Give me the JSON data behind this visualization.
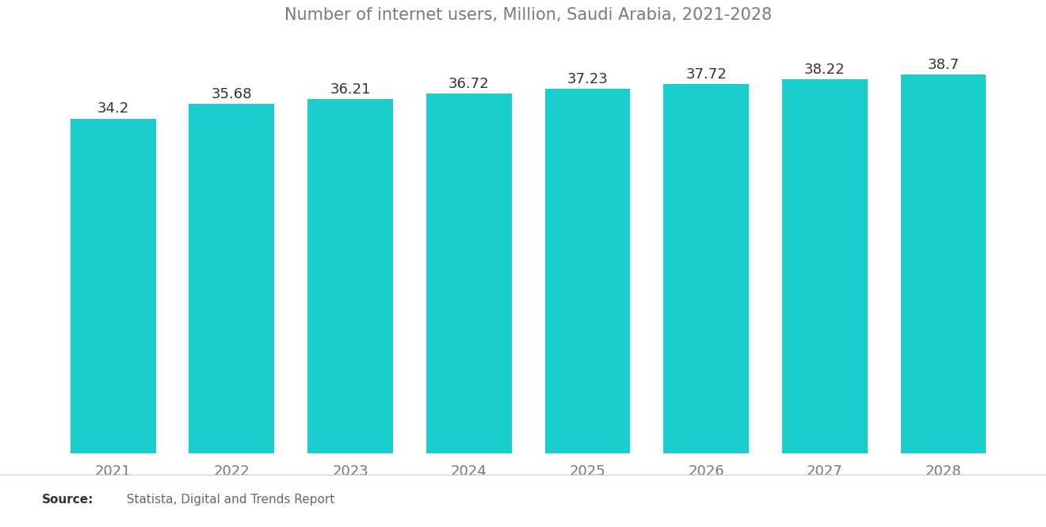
{
  "title": "Number of internet users, Million, Saudi Arabia, 2021-2028",
  "years": [
    "2021",
    "2022",
    "2023",
    "2024",
    "2025",
    "2026",
    "2027",
    "2028"
  ],
  "values": [
    34.2,
    35.68,
    36.21,
    36.72,
    37.23,
    37.72,
    38.22,
    38.7
  ],
  "bar_color": "#1ACECB",
  "background_color": "#ffffff",
  "title_color": "#7a7a7a",
  "label_color": "#333333",
  "tick_color": "#777777",
  "source_bold": "Source:",
  "source_rest": "  Statista, Digital and Trends Report",
  "ylim_min": 0,
  "ylim_max": 42,
  "bar_width": 0.72,
  "title_fontsize": 15,
  "label_fontsize": 13,
  "tick_fontsize": 13
}
